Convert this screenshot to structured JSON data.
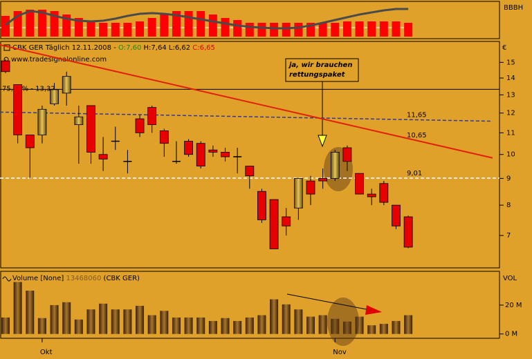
{
  "chart_data": [
    {
      "type": "oscillator",
      "title": "BBBH",
      "ylim": [
        -45,
        0
      ],
      "series": [
        {
          "color": "#ff0000",
          "values": [
            -30,
            -37,
            -39,
            -39,
            -37,
            -32,
            -27,
            -22,
            -20,
            -20,
            -20,
            -22,
            -27,
            -32,
            -37,
            -37,
            -37,
            -32,
            -27,
            -24,
            -20,
            -20,
            -20,
            -20,
            -20,
            -20,
            -20,
            -20,
            -22,
            -22,
            -22,
            -22,
            -22,
            -20
          ]
        },
        {
          "color": "#4a4a4a",
          "values": [
            -17,
            -30,
            -37,
            -35,
            -30,
            -26,
            -23,
            -22,
            -23,
            -26,
            -30,
            -33,
            -34,
            -33,
            -31,
            -28,
            -25,
            -22,
            -19,
            -16,
            -14,
            -13,
            -12,
            -12,
            -13,
            -16,
            -20,
            -24,
            -28,
            -32,
            -35,
            -38,
            -40,
            -40
          ]
        }
      ]
    },
    {
      "type": "candlestick",
      "title": "CBK GER Täglich 12.11.2008 -",
      "ohlc_labels": [
        "O:7,60",
        "H:7,64",
        "L:6,62",
        "C:6,65"
      ],
      "ohlc_colors": [
        "#1a8a1a",
        "#000000",
        "#000000",
        "#e00000"
      ],
      "source": "www.tradesignalonline.com",
      "unit": "€",
      "annotation": [
        "ja, wir brauchen",
        "rettungspaket"
      ],
      "categories": [
        null,
        null,
        null,
        "Okt",
        null,
        null,
        null,
        null,
        null,
        null,
        null,
        null,
        null,
        null,
        null,
        null,
        null,
        null,
        null,
        null,
        null,
        null,
        null,
        null,
        null,
        null,
        null,
        "Nov",
        null,
        null,
        null,
        null,
        null,
        null
      ],
      "open": [
        15.1,
        13.6,
        10.9,
        10.9,
        12.5,
        13.1,
        11.4,
        12.4,
        10.0,
        10.6,
        9.7,
        11.7,
        12.3,
        11.1,
        9.7,
        10.6,
        10.5,
        10.2,
        10.1,
        9.9,
        9.5,
        8.5,
        8.2,
        7.6,
        7.9,
        8.9,
        9.0,
        9.0,
        10.3,
        9.2,
        8.4,
        8.8,
        8.0,
        7.6
      ],
      "high": [
        15.2,
        13.6,
        10.9,
        12.4,
        13.7,
        14.4,
        12.4,
        12.4,
        10.8,
        11.3,
        10.2,
        11.9,
        12.4,
        11.2,
        10.6,
        10.7,
        10.6,
        10.4,
        10.3,
        10.3,
        9.5,
        8.6,
        8.2,
        7.9,
        9.0,
        9.1,
        9.4,
        10.2,
        10.4,
        9.2,
        8.6,
        8.9,
        8.0,
        7.64
      ],
      "low": [
        14.3,
        10.5,
        9.0,
        10.5,
        12.4,
        12.4,
        9.6,
        9.6,
        9.3,
        10.2,
        9.2,
        10.8,
        11.0,
        9.9,
        9.6,
        9.9,
        9.4,
        9.9,
        9.7,
        9.2,
        8.6,
        7.4,
        6.6,
        7.0,
        7.5,
        8.0,
        8.6,
        8.9,
        9.3,
        8.4,
        8.0,
        8.0,
        7.2,
        6.62
      ],
      "close": [
        14.4,
        10.9,
        10.3,
        12.2,
        13.3,
        14.1,
        11.8,
        10.1,
        9.8,
        10.6,
        9.7,
        11.0,
        11.4,
        10.5,
        9.7,
        10.0,
        9.5,
        10.1,
        9.9,
        9.9,
        9.1,
        7.5,
        6.6,
        7.3,
        9.0,
        8.4,
        8.9,
        10.1,
        9.7,
        8.4,
        8.3,
        8.1,
        7.3,
        6.65
      ],
      "up_color": "#c9a035",
      "down_color": "#e60000",
      "log_scale": true,
      "ylim": [
        6.07,
        16.2
      ],
      "yticks": [
        7,
        8,
        9,
        10,
        11,
        12,
        13,
        14,
        15
      ],
      "lines": [
        {
          "label": "75,00% - 13,32",
          "value": 13.32,
          "start": 13.32,
          "color": "#000000",
          "dashed": false,
          "label_side": "left"
        },
        {
          "label": "11,65",
          "value": 11.65,
          "start": 12.05,
          "color": "#3a3a7a",
          "dashed": true,
          "label_side": "right"
        },
        {
          "label": "10,65",
          "value": 10.65,
          "start": 16.2,
          "color": "#e02000",
          "dashed": false,
          "label_side": "right"
        },
        {
          "label": "9,01",
          "value": 9.01,
          "start": 9.01,
          "color": "#ffffff",
          "dashed": true,
          "label_side": "right"
        }
      ]
    },
    {
      "type": "volume",
      "title": "Volume [None]",
      "value_label": "13468060",
      "subtitle": "(CBK GER)",
      "axis_label": "VOL",
      "values": [
        11.4,
        36,
        30,
        11,
        20,
        22,
        10,
        17,
        21,
        17,
        17,
        19.5,
        13,
        16,
        11.4,
        11.4,
        11.4,
        9,
        11,
        9,
        11.4,
        13,
        24,
        20.5,
        17,
        12,
        13,
        10.5,
        8.6,
        12,
        6,
        7,
        9,
        13
      ],
      "ylim": [
        -3,
        41
      ],
      "yticks": [
        {
          "value": 0,
          "label": "0 M"
        },
        {
          "value": 20,
          "label": "20 M"
        }
      ]
    }
  ]
}
